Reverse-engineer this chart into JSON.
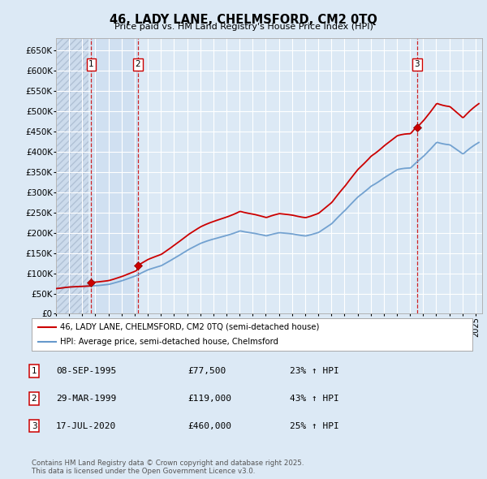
{
  "title": "46, LADY LANE, CHELMSFORD, CM2 0TQ",
  "subtitle": "Price paid vs. HM Land Registry's House Price Index (HPI)",
  "ylim": [
    0,
    680000
  ],
  "yticks": [
    0,
    50000,
    100000,
    150000,
    200000,
    250000,
    300000,
    350000,
    400000,
    450000,
    500000,
    550000,
    600000,
    650000
  ],
  "xlim_start": 1993.0,
  "xlim_end": 2025.5,
  "bg_color": "#dce9f5",
  "plot_bg_color": "#dce9f5",
  "hatch_color": "#c0cfe0",
  "grid_color": "#ffffff",
  "highlight_color": "#c5d8ee",
  "legend_items": [
    {
      "label": "46, LADY LANE, CHELMSFORD, CM2 0TQ (semi-detached house)",
      "color": "#cc0000",
      "lw": 1.5
    },
    {
      "label": "HPI: Average price, semi-detached house, Chelmsford",
      "color": "#6699cc",
      "lw": 1.5
    }
  ],
  "transactions": [
    {
      "num": 1,
      "date": "08-SEP-1995",
      "price": 77500,
      "pct": "23%",
      "dir": "↑",
      "year": 1995.69
    },
    {
      "num": 2,
      "date": "29-MAR-1999",
      "price": 119000,
      "pct": "43%",
      "dir": "↑",
      "year": 1999.24
    },
    {
      "num": 3,
      "date": "17-JUL-2020",
      "price": 460000,
      "pct": "25%",
      "dir": "↑",
      "year": 2020.54
    }
  ],
  "footer": "Contains HM Land Registry data © Crown copyright and database right 2025.\nThis data is licensed under the Open Government Licence v3.0.",
  "house_color": "#cc0000",
  "hpi_color": "#6699cc",
  "marker_color": "#cc0000",
  "dashed_line_color": "#cc0000"
}
